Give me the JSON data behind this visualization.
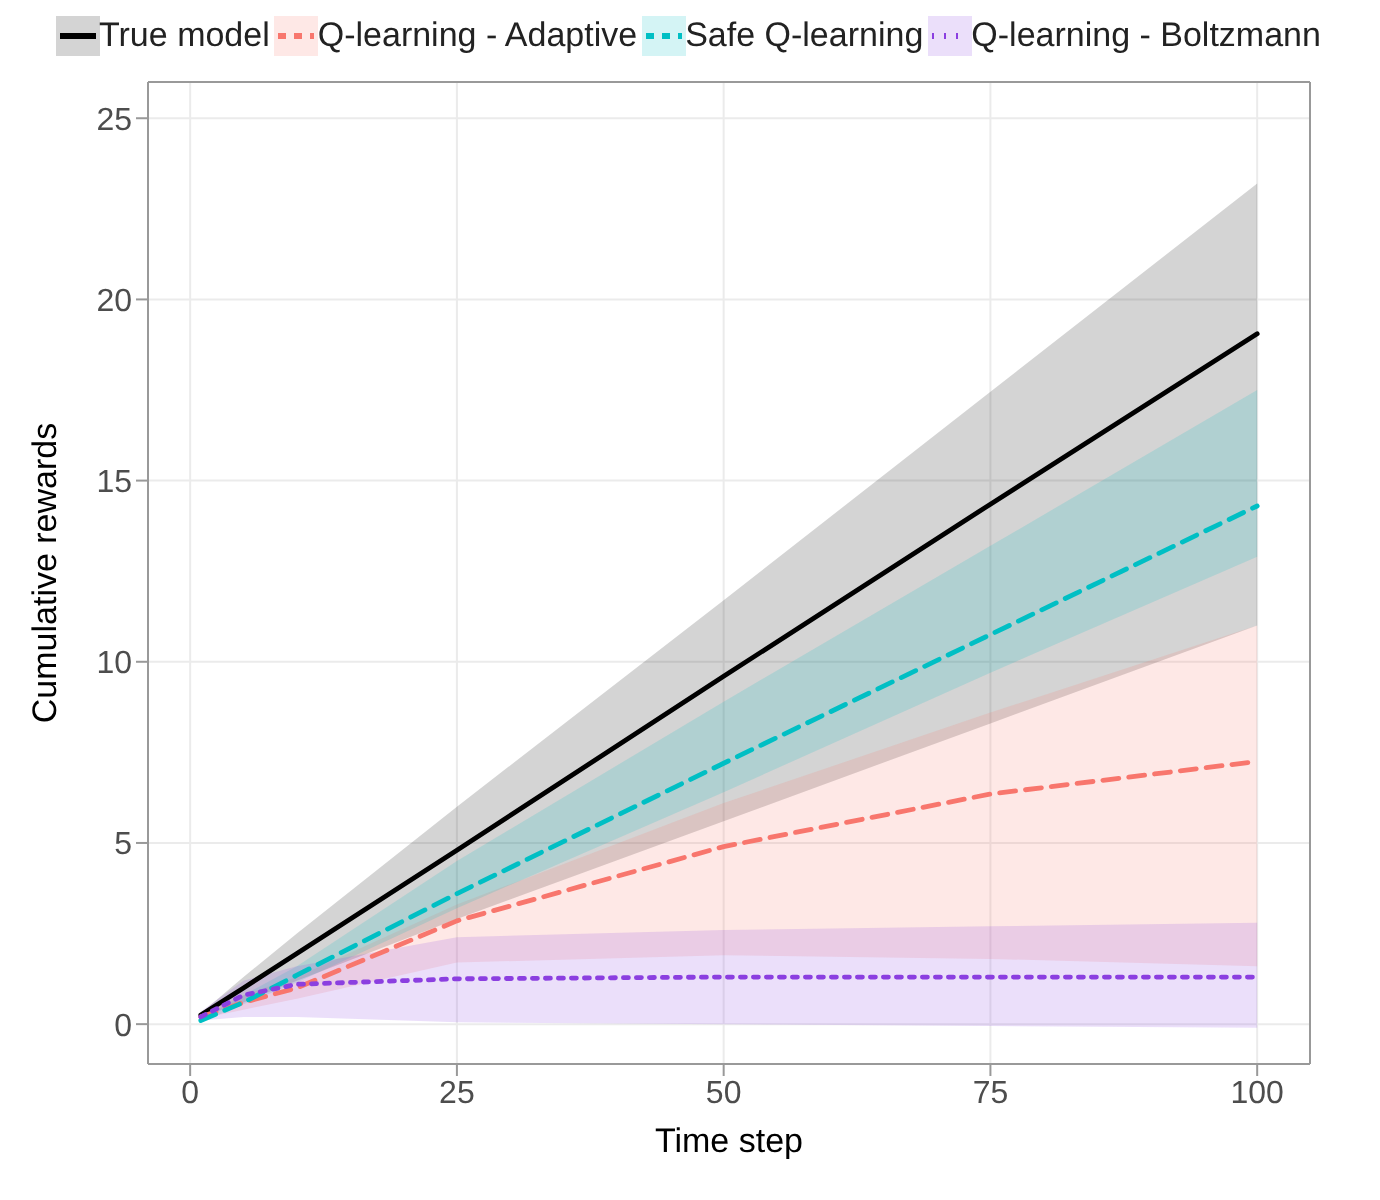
{
  "chart_data": {
    "type": "line",
    "xlabel": "Time step",
    "ylabel": "Cumulative rewards",
    "x": [
      1,
      5,
      10,
      25,
      50,
      75,
      100
    ],
    "xlim": [
      -3.95,
      104.95
    ],
    "xticks": [
      0,
      25,
      50,
      75,
      100
    ],
    "ylim": [
      -1.1,
      26
    ],
    "yticks": [
      0,
      5,
      10,
      15,
      20,
      25
    ],
    "grid": true,
    "legend": "top",
    "marker": "none",
    "series": [
      {
        "name": "True model",
        "color": "#000000",
        "line_style": "solid",
        "values": [
          0.25,
          1.0,
          1.95,
          4.8,
          9.6,
          14.35,
          19.05
        ],
        "lower": [
          0.2,
          0.6,
          1.2,
          2.9,
          5.6,
          8.3,
          11.0
        ],
        "upper": [
          0.3,
          1.3,
          2.5,
          6.0,
          11.7,
          17.45,
          23.2
        ]
      },
      {
        "name": "Q-learning - Adaptive",
        "color": "#f8766d",
        "line_style": "dashed",
        "values": [
          0.2,
          0.6,
          1.0,
          2.85,
          4.9,
          6.35,
          7.25
        ],
        "lower": [
          0.15,
          0.4,
          0.7,
          1.7,
          1.9,
          1.8,
          1.6
        ],
        "upper": [
          0.3,
          0.8,
          1.3,
          3.3,
          6.1,
          8.6,
          11.0
        ]
      },
      {
        "name": "Safe Q-learning",
        "color": "#00bfc4",
        "line_style": "dashed",
        "values": [
          0.1,
          0.6,
          1.35,
          3.6,
          7.2,
          10.75,
          14.3
        ],
        "lower": [
          0.05,
          0.55,
          1.15,
          3.2,
          6.4,
          9.7,
          12.9
        ],
        "upper": [
          0.15,
          0.8,
          1.6,
          4.5,
          8.9,
          13.2,
          17.5
        ]
      },
      {
        "name": "Q-learning - Boltzmann",
        "color": "#8b3fe0",
        "line_style": "dotted",
        "values": [
          0.2,
          0.8,
          1.1,
          1.25,
          1.3,
          1.3,
          1.3
        ],
        "lower": [
          0.1,
          0.2,
          0.2,
          0.05,
          0.0,
          -0.05,
          -0.1
        ],
        "upper": [
          0.35,
          1.2,
          1.6,
          2.4,
          2.6,
          2.7,
          2.8
        ]
      }
    ]
  }
}
